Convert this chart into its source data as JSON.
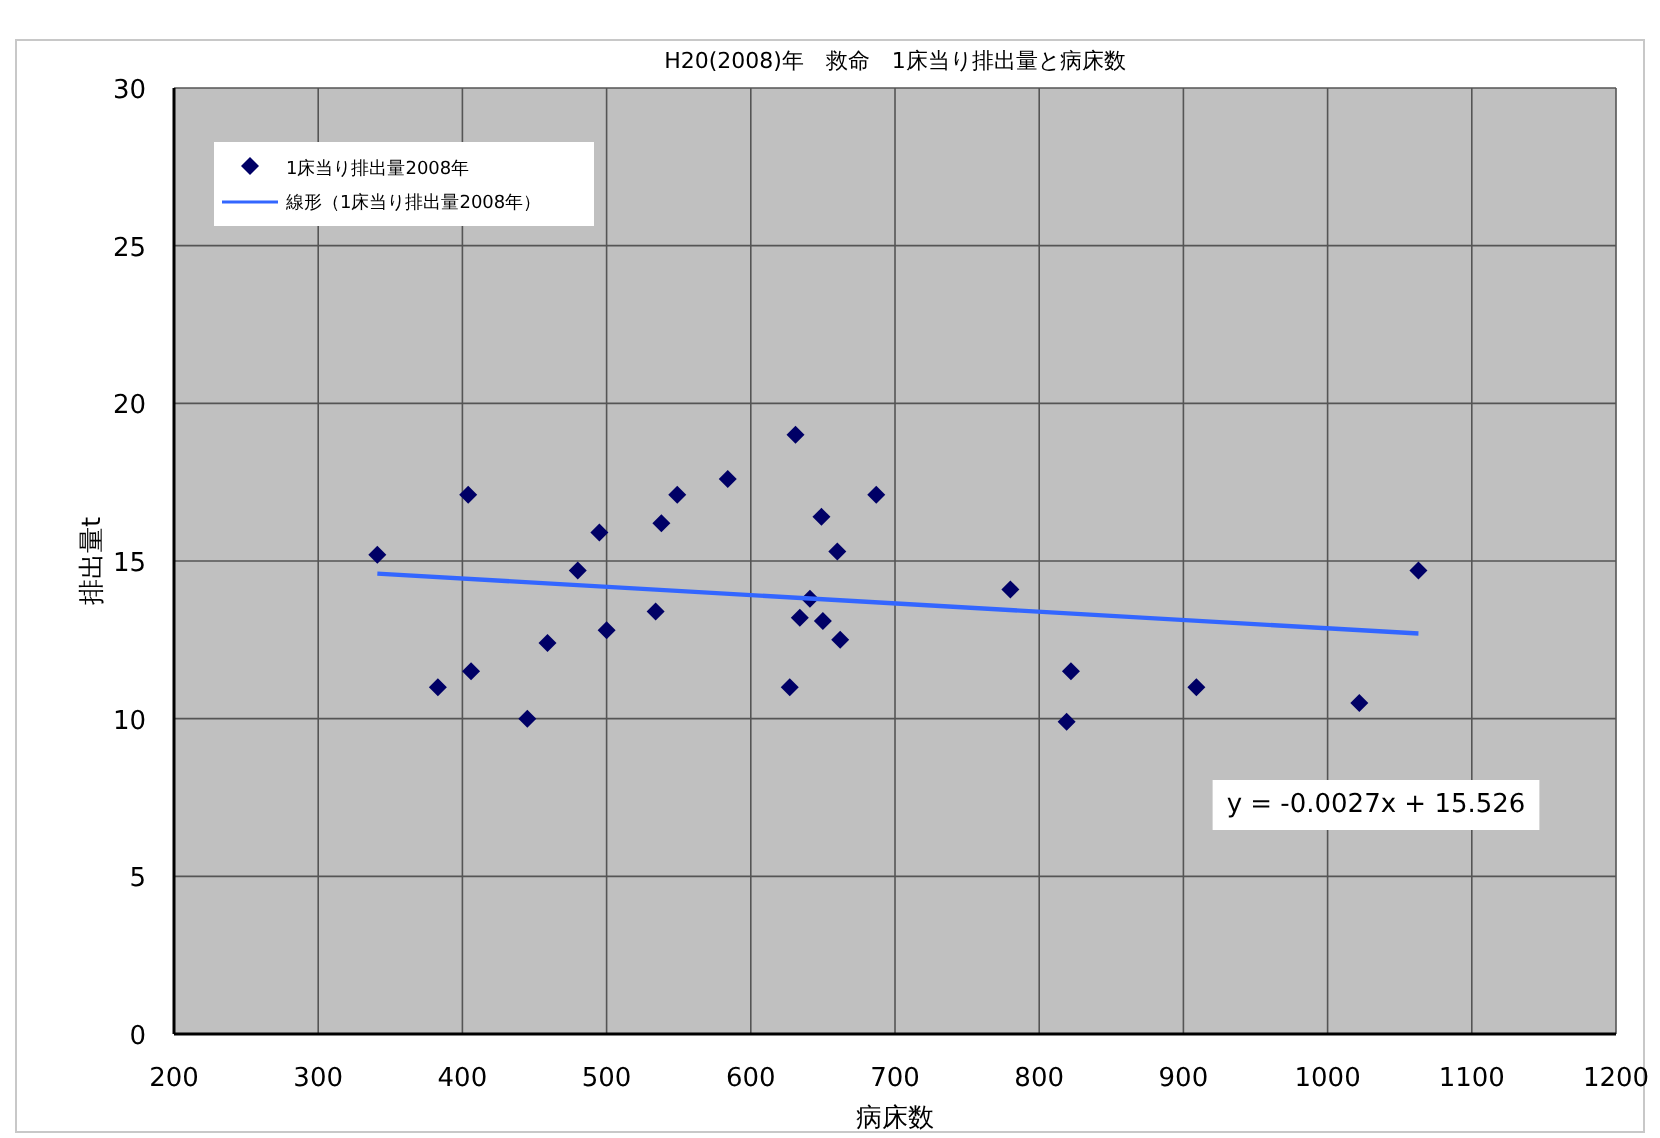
{
  "chart_data": {
    "type": "scatter",
    "title": "H20(2008)年　救命　1床当り排出量と病床数",
    "xlabel": "病床数",
    "ylabel": "排出量t",
    "xlim": [
      200,
      1200
    ],
    "xticks": [
      200,
      300,
      400,
      500,
      600,
      700,
      800,
      900,
      1000,
      1100,
      1200
    ],
    "ylim": [
      0,
      30
    ],
    "yticks": [
      0,
      5,
      10,
      15,
      20,
      25,
      30
    ],
    "grid": true,
    "legend": "top left",
    "series": [
      {
        "name": "1床当り排出量2008年",
        "marker": "diamond",
        "color": "#000066",
        "x": [
          341,
          383,
          404,
          406,
          445,
          459,
          480,
          495,
          500,
          534,
          538,
          549,
          584,
          631,
          627,
          634,
          641,
          649,
          650,
          660,
          662,
          687,
          780,
          819,
          822,
          909,
          1022,
          1063
        ],
        "values": [
          15.2,
          11.0,
          17.1,
          11.5,
          10.0,
          12.4,
          14.7,
          15.9,
          12.8,
          13.4,
          16.2,
          17.1,
          17.6,
          19.0,
          11.0,
          13.2,
          13.8,
          16.4,
          13.1,
          15.3,
          12.5,
          17.1,
          14.1,
          9.9,
          11.5,
          11.0,
          10.5,
          14.7
        ]
      },
      {
        "name": "線形（1床当り排出量2008年）",
        "type": "line",
        "marker": "none",
        "color": "#3366ff",
        "x": [
          341,
          1063
        ],
        "values": [
          14.6,
          12.7
        ]
      }
    ],
    "annotations": [
      "y = -0.0027x + 15.526"
    ]
  }
}
